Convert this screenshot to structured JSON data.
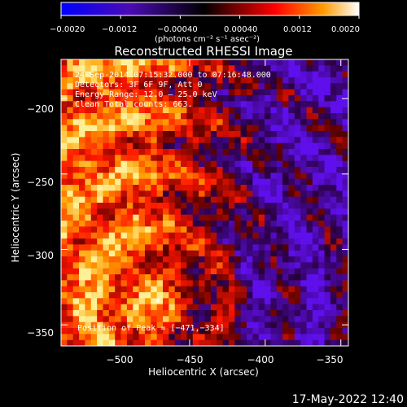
{
  "chart_data": {
    "type": "heatmap",
    "title": "Reconstructed RHESSI Image",
    "xlabel": "Heliocentric X (arcsec)",
    "ylabel": "Heliocentric Y (arcsec)",
    "xlim": [
      -535,
      -345
    ],
    "ylim": [
      -364,
      -174
    ],
    "x_ticks": [
      -500,
      -450,
      -400,
      -350
    ],
    "y_ticks": [
      -200,
      -250,
      -300,
      -350
    ],
    "x_tick_labels": [
      "−500",
      "−450",
      "−400",
      "−350"
    ],
    "y_tick_labels": [
      "−200",
      "−250",
      "−300",
      "−350"
    ],
    "colorbar": {
      "min": -0.002,
      "max": 0.002,
      "ticks": [
        -0.002,
        -0.0012,
        -0.0004,
        0.0004,
        0.0012,
        0.002
      ],
      "tick_labels": [
        "−0.0020",
        "−0.0012",
        "−0.00040",
        "0.00040",
        "0.0012",
        "0.0020"
      ],
      "unit_label": "(photons cm⁻² s⁻¹ asec⁻²)"
    },
    "annotations": {
      "time_range": "24‑Sep‑2014 07:15:32.000 to 07:16:48.000",
      "detectors": "Detectors: 3F 6F 9F, Att 0",
      "energy_range": "Energy Range: 12.0 – 25.0 keV",
      "clean": "Clean     Total counts: 663.",
      "peak": "Position of Peak = [−471,−334]"
    },
    "peak": [
      -471,
      -334
    ],
    "colors": {
      "low": "#0000ff",
      "zero": "#000000",
      "mid_positive": "#ff0000",
      "high": "#ffffff"
    }
  },
  "footer": {
    "timestamp": "17‑May‑2022 12:40"
  }
}
